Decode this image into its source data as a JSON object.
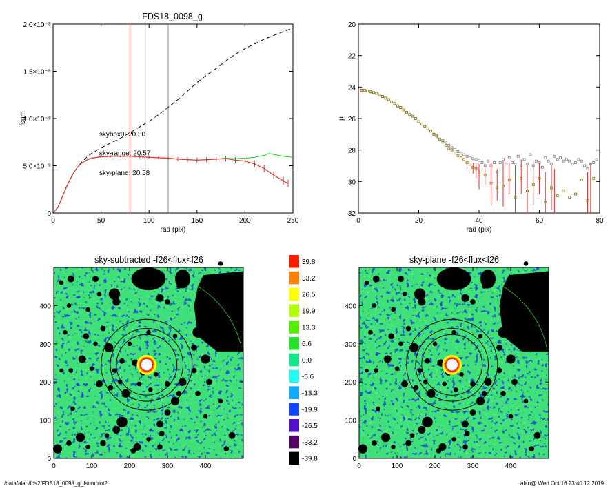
{
  "colors": {
    "black": "#000000",
    "red": "#e8312f",
    "green": "#22cc22",
    "gray": "#888888",
    "olive": "#9a7a20"
  },
  "chart_data": [
    {
      "type": "line",
      "title": "FDS18_0098_g",
      "xlabel": "rad (pix)",
      "ylabel": "fsum",
      "xlim": [
        0,
        250
      ],
      "ylim": [
        0,
        2e-08
      ],
      "xticks": [
        "0",
        "50",
        "100",
        "150",
        "200",
        "250"
      ],
      "yticks": [
        {
          "v": 0,
          "label": "0"
        },
        {
          "v": 5e-09,
          "label": "5.0×10⁻⁹"
        },
        {
          "v": 1e-08,
          "label": "1.0×10⁻⁸"
        },
        {
          "v": 1.5e-08,
          "label": "1.5×10⁻⁸"
        },
        {
          "v": 2e-08,
          "label": "2.0×10⁻⁸"
        }
      ],
      "vlines": [
        {
          "x": 80,
          "color": "red"
        },
        {
          "x": 96,
          "color": "gray"
        },
        {
          "x": 120,
          "color": "gray"
        }
      ],
      "annotations": [
        {
          "text": "skybox0: 20.30",
          "x": 48,
          "y": 8.1e-09,
          "color": "black"
        },
        {
          "text": "sky-range: 20.57",
          "x": 48,
          "y": 6.1e-09,
          "color": "red"
        },
        {
          "text": "sky-plane: 20.58",
          "x": 48,
          "y": 4e-09,
          "color": "green"
        }
      ],
      "series": [
        {
          "style": "dashed",
          "color": "black",
          "x": [
            0,
            5,
            10,
            15,
            20,
            25,
            30,
            35,
            40,
            50,
            60,
            70,
            80,
            90,
            100,
            110,
            120,
            130,
            140,
            150,
            160,
            170,
            180,
            190,
            200,
            210,
            220,
            230,
            240,
            250
          ],
          "y": [
            0,
            6e-10,
            1.8e-09,
            3e-09,
            4e-09,
            4.8e-09,
            5.4e-09,
            5.9e-09,
            6.3e-09,
            6.9e-09,
            7.4e-09,
            7.9e-09,
            8.5e-09,
            9.1e-09,
            9.7e-09,
            1.04e-08,
            1.12e-08,
            1.2e-08,
            1.29e-08,
            1.38e-08,
            1.46e-08,
            1.53e-08,
            1.61e-08,
            1.68e-08,
            1.74e-08,
            1.79e-08,
            1.84e-08,
            1.88e-08,
            1.92e-08,
            1.96e-08
          ]
        },
        {
          "style": "solid",
          "color": "green",
          "x": [
            0,
            5,
            10,
            15,
            20,
            25,
            30,
            35,
            40,
            50,
            60,
            70,
            80,
            90,
            100,
            110,
            120,
            130,
            140,
            150,
            160,
            170,
            180,
            190,
            200,
            210,
            220,
            225,
            230,
            240,
            250
          ],
          "y": [
            0,
            6e-10,
            1.8e-09,
            3e-09,
            4e-09,
            4.8e-09,
            5.3e-09,
            5.6e-09,
            5.8e-09,
            5.95e-09,
            6e-09,
            6e-09,
            6e-09,
            5.95e-09,
            5.9e-09,
            5.85e-09,
            5.8e-09,
            5.7e-09,
            5.65e-09,
            5.6e-09,
            5.65e-09,
            5.7e-09,
            5.8e-09,
            5.75e-09,
            5.8e-09,
            5.9e-09,
            6.1e-09,
            6.3e-09,
            6.2e-09,
            6e-09,
            5.9e-09
          ]
        },
        {
          "style": "errorbars",
          "color": "red",
          "x": [
            0,
            5,
            10,
            15,
            20,
            25,
            30,
            35,
            40,
            50,
            60,
            70,
            80,
            90,
            100,
            110,
            120,
            130,
            140,
            150,
            160,
            170,
            180,
            190,
            200,
            210,
            220,
            230,
            240,
            245
          ],
          "y": [
            0,
            6e-10,
            1.8e-09,
            3e-09,
            4e-09,
            4.8e-09,
            5.3e-09,
            5.6e-09,
            5.8e-09,
            5.95e-09,
            6e-09,
            6e-09,
            6e-09,
            5.95e-09,
            5.9e-09,
            5.85e-09,
            5.8e-09,
            5.7e-09,
            5.65e-09,
            5.6e-09,
            5.65e-09,
            5.7e-09,
            5.75e-09,
            5.6e-09,
            5.5e-09,
            5.2e-09,
            4.7e-09,
            4e-09,
            3.4e-09,
            3.1e-09
          ]
        }
      ]
    },
    {
      "type": "scatter",
      "title": "",
      "xlabel": "rad (pix)",
      "ylabel": "μ",
      "xlim": [
        0,
        80
      ],
      "ylim": [
        32,
        20
      ],
      "xticks": [
        "0",
        "20",
        "40",
        "60",
        "80"
      ],
      "yticks": [
        "20",
        "22",
        "24",
        "26",
        "28",
        "30",
        "32"
      ],
      "series": [
        {
          "marker": "square",
          "color": "gray",
          "x": [
            1,
            2,
            3,
            4,
            5,
            6,
            7,
            8,
            9,
            10,
            11,
            12,
            13,
            14,
            15,
            16,
            17,
            18,
            19,
            20,
            21,
            22,
            23,
            24,
            25,
            26,
            27,
            28,
            29,
            30,
            31,
            32,
            33,
            34,
            35,
            36,
            37,
            38,
            39,
            40,
            41,
            42,
            43,
            44,
            45,
            46,
            47,
            48,
            49,
            50,
            51,
            52,
            53,
            54,
            55,
            56,
            57,
            58,
            59,
            60,
            61,
            62,
            63,
            64,
            65,
            66,
            67,
            68,
            69,
            70,
            71,
            72,
            73,
            74,
            75,
            76,
            77,
            78,
            79
          ],
          "y": [
            24.2,
            24.2,
            24.25,
            24.3,
            24.35,
            24.4,
            24.5,
            24.6,
            24.7,
            24.8,
            24.95,
            25.05,
            25.2,
            25.3,
            25.45,
            25.6,
            25.75,
            25.85,
            26.0,
            26.2,
            26.35,
            26.5,
            26.65,
            26.8,
            27.0,
            27.1,
            27.3,
            27.4,
            27.55,
            27.7,
            27.85,
            27.95,
            28.1,
            28.2,
            28.3,
            28.4,
            28.5,
            28.55,
            28.6,
            28.65,
            28.8,
            29.0,
            28.7,
            29.0,
            28.8,
            29.4,
            28.8,
            28.6,
            28.9,
            28.5,
            28.8,
            28.9,
            28.4,
            29.0,
            28.6,
            28.9,
            28.3,
            29.0,
            28.7,
            28.8,
            29.1,
            28.5,
            28.7,
            28.9,
            28.4,
            28.6,
            28.5,
            28.7,
            28.6,
            28.7,
            28.9,
            28.8,
            28.6,
            28.7,
            29.0,
            29.2,
            28.9,
            28.8,
            28.6
          ]
        },
        {
          "marker": "square",
          "color": "olive",
          "x": [
            1,
            2,
            3,
            4,
            5,
            6,
            7,
            8,
            9,
            10,
            11,
            12,
            13,
            14,
            15,
            16,
            17,
            18,
            19,
            20,
            21,
            22,
            23,
            24,
            25,
            26,
            27,
            28,
            29,
            30,
            31,
            32,
            33,
            34,
            35,
            36,
            37,
            38,
            39,
            40,
            42,
            44,
            46,
            48,
            50,
            52,
            54,
            56,
            58,
            60,
            62,
            64,
            66,
            68,
            70,
            72,
            74,
            76,
            78
          ],
          "y": [
            24.2,
            24.2,
            24.25,
            24.3,
            24.35,
            24.4,
            24.5,
            24.6,
            24.7,
            24.8,
            24.95,
            25.05,
            25.2,
            25.3,
            25.45,
            25.6,
            25.75,
            25.85,
            26.0,
            26.2,
            26.35,
            26.5,
            26.65,
            26.8,
            27.0,
            27.15,
            27.35,
            27.5,
            27.7,
            27.9,
            28.0,
            28.2,
            28.35,
            28.5,
            28.6,
            28.8,
            28.9,
            29.1,
            29.2,
            29.4,
            29.6,
            30.1,
            30.4,
            30.3,
            29.9,
            31.0,
            29.8,
            30.6,
            30.2,
            29.8,
            31.3,
            30.4,
            30.9,
            30.6,
            31.0,
            30.8,
            29.9,
            31.2,
            29.8
          ]
        }
      ],
      "errorbars": [
        {
          "x": 36,
          "y": 28.8,
          "lo": 28.6,
          "hi": 29.2
        },
        {
          "x": 38,
          "y": 29.1,
          "lo": 28.8,
          "hi": 29.5
        },
        {
          "x": 39,
          "y": 29.2,
          "lo": 28.8,
          "hi": 29.8
        },
        {
          "x": 40,
          "y": 29.4,
          "lo": 28.9,
          "hi": 30.5
        },
        {
          "x": 42,
          "y": 29.6,
          "lo": 29.0,
          "hi": 30.2
        },
        {
          "x": 44,
          "y": 30.1,
          "lo": 28.8,
          "hi": 31.5
        },
        {
          "x": 46,
          "y": 30.4,
          "lo": 29.2,
          "hi": 31.2
        },
        {
          "x": 48,
          "y": 30.3,
          "lo": 28.7,
          "hi": 31.6
        },
        {
          "x": 50,
          "y": 29.9,
          "lo": 28.8,
          "hi": 30.8
        },
        {
          "x": 52,
          "y": 31.0,
          "lo": 29.0,
          "hi": 32.0
        },
        {
          "x": 54,
          "y": 29.8,
          "lo": 28.6,
          "hi": 30.8
        },
        {
          "x": 56,
          "y": 30.6,
          "lo": 28.9,
          "hi": 32.0
        },
        {
          "x": 58,
          "y": 30.2,
          "lo": 28.7,
          "hi": 31.5
        },
        {
          "x": 60,
          "y": 29.8,
          "lo": 28.8,
          "hi": 30.8
        },
        {
          "x": 62,
          "y": 31.3,
          "lo": 29.4,
          "hi": 32.0
        },
        {
          "x": 64,
          "y": 30.4,
          "lo": 29.0,
          "hi": 31.8
        },
        {
          "x": 65,
          "y": 32.0,
          "lo": 29.2,
          "hi": 32.0
        },
        {
          "x": 76,
          "y": 31.2,
          "lo": 29.4,
          "hi": 32.0
        },
        {
          "x": 77,
          "y": 30.0,
          "lo": 28.8,
          "hi": 32.0
        }
      ]
    },
    {
      "type": "heatmap",
      "title": "sky-subtracted -f26<flux<f26",
      "xlim": [
        0,
        500
      ],
      "ylim": [
        0,
        500
      ],
      "xticks": [
        "0",
        "100",
        "200",
        "300",
        "400"
      ],
      "yticks": [
        "0",
        "100",
        "200",
        "300",
        "400"
      ]
    },
    {
      "type": "heatmap",
      "title": "sky-plane -f26<flux<f26",
      "xlim": [
        0,
        500
      ],
      "ylim": [
        0,
        500
      ],
      "xticks": [
        "0",
        "100",
        "200",
        "300",
        "400"
      ],
      "yticks": [
        "0",
        "100",
        "200",
        "300",
        "400"
      ]
    }
  ],
  "colorbar": {
    "levels": [
      {
        "label": "39.8",
        "color": "#ff1a00"
      },
      {
        "label": "33.2",
        "color": "#ff7f00"
      },
      {
        "label": "26.5",
        "color": "#ffff00"
      },
      {
        "label": "19.9",
        "color": "#b2ff00"
      },
      {
        "label": "13.3",
        "color": "#55ee00"
      },
      {
        "label": "6.6",
        "color": "#22e22a"
      },
      {
        "label": "0.0",
        "color": "#11e888"
      },
      {
        "label": "-6.6",
        "color": "#22ffee"
      },
      {
        "label": "-13.3",
        "color": "#11aaff"
      },
      {
        "label": "-19.9",
        "color": "#1144ff"
      },
      {
        "label": "-26.5",
        "color": "#5511cc"
      },
      {
        "label": "-33.2",
        "color": "#550066"
      },
      {
        "label": "-39.8",
        "color": "#000000"
      }
    ]
  },
  "footer": {
    "path": "/data/alan/fds2/FDS18_0098_g_fsumplot2",
    "stamp": "alan@  Wed Oct 16 23:40:12 2019"
  }
}
